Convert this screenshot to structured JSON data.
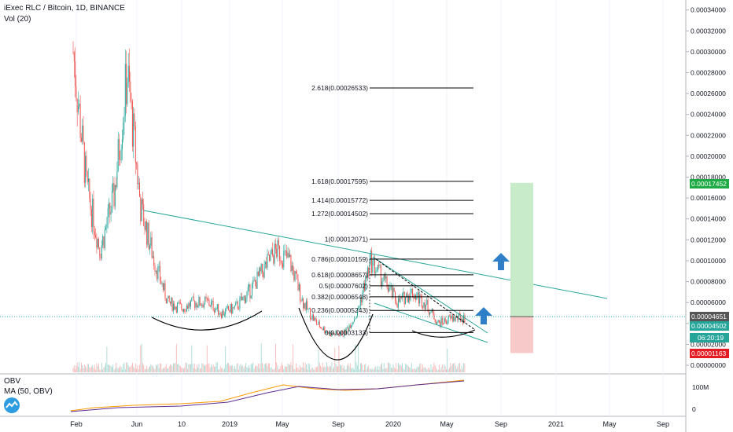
{
  "header": {
    "title": "iExec RLC / Bitcoin, 1D, BINANCE",
    "volume_label": "Vol (20)",
    "obv_label": "OBV",
    "ma_label": "MA (50, OBV)"
  },
  "colors": {
    "up": "#26a69a",
    "down": "#ef5350",
    "trendline": "#26a69a",
    "arc": "#000000",
    "fib": "#000000",
    "target_zone": "#c8ebc9",
    "stop_zone": "#f8c9c9",
    "arrow": "#2e7ec8",
    "obv_line": "#ff9800",
    "ma_line": "#5c2d91",
    "current_price_line": "#26a69a"
  },
  "price_axis": {
    "min": 0.0,
    "max": 0.000345,
    "ticks": [
      "0.00034000",
      "0.00032000",
      "0.00030000",
      "0.00028000",
      "0.00026000",
      "0.00024000",
      "0.00022000",
      "0.00020000",
      "0.00018000",
      "0.00016000",
      "0.00014000",
      "0.00012000",
      "0.00010000",
      "0.00008000",
      "0.00006000",
      "0.00004000",
      "0.00002000",
      "0.00000000"
    ]
  },
  "badges": {
    "target": "0.00017452",
    "last": "0.00004651",
    "current": "0.00004502",
    "countdown": "06:20:19",
    "stop": "0.00001163"
  },
  "obv_axis": {
    "ticks": [
      "100M",
      "0"
    ]
  },
  "time_axis": {
    "labels": [
      "Feb",
      "Jun",
      "10",
      "2019",
      "May",
      "Sep",
      "2020",
      "May",
      "Sep",
      "2021",
      "May",
      "Sep"
    ]
  },
  "fib_levels": [
    {
      "label": "2.618(0.00026533)",
      "price": 0.00026533
    },
    {
      "label": "1.618(0.00017595)",
      "price": 0.00017595
    },
    {
      "label": "1.414(0.00015772)",
      "price": 0.00015772
    },
    {
      "label": "1.272(0.00014502)",
      "price": 0.00014502
    },
    {
      "label": "1(0.00012071)",
      "price": 0.00012071
    },
    {
      "label": "0.786(0.00010159)",
      "price": 0.00010159
    },
    {
      "label": "0.618(0.00008657)",
      "price": 8.657e-05
    },
    {
      "label": "0.5(0.00007602)",
      "price": 7.602e-05
    },
    {
      "label": "0.382(0.00006548)",
      "price": 6.548e-05
    },
    {
      "label": "0.236(0.00005243)",
      "price": 5.243e-05
    },
    {
      "label": "0(0.00003133)",
      "price": 3.133e-05
    }
  ],
  "chart_data": {
    "type": "candlestick",
    "title": "iExec RLC / Bitcoin, 1D, BINANCE",
    "y_unit": "BTC",
    "ylim": [
      0.0,
      0.000345
    ],
    "approx_close_path": [
      {
        "date": "2018-01",
        "close": 0.0003
      },
      {
        "date": "2018-02",
        "close": 0.00017
      },
      {
        "date": "2018-03",
        "close": 0.00011
      },
      {
        "date": "2018-04",
        "close": 0.00016
      },
      {
        "date": "2018-05",
        "close": 0.00028
      },
      {
        "date": "2018-06",
        "close": 0.00015
      },
      {
        "date": "2018-07",
        "close": 0.0001
      },
      {
        "date": "2018-08",
        "close": 6e-05
      },
      {
        "date": "2018-09",
        "close": 5.5e-05
      },
      {
        "date": "2018-10",
        "close": 6e-05
      },
      {
        "date": "2018-11",
        "close": 6e-05
      },
      {
        "date": "2018-12",
        "close": 5e-05
      },
      {
        "date": "2019-01",
        "close": 5.5e-05
      },
      {
        "date": "2019-02",
        "close": 7e-05
      },
      {
        "date": "2019-03",
        "close": 9e-05
      },
      {
        "date": "2019-04",
        "close": 0.00011
      },
      {
        "date": "2019-05",
        "close": 0.0001
      },
      {
        "date": "2019-06",
        "close": 6e-05
      },
      {
        "date": "2019-07",
        "close": 4e-05
      },
      {
        "date": "2019-08",
        "close": 3e-05
      },
      {
        "date": "2019-09",
        "close": 3e-05
      },
      {
        "date": "2019-10",
        "close": 5e-05
      },
      {
        "date": "2019-11",
        "close": 0.0001
      },
      {
        "date": "2019-12",
        "close": 8e-05
      },
      {
        "date": "2020-01",
        "close": 6e-05
      },
      {
        "date": "2020-02",
        "close": 7e-05
      },
      {
        "date": "2020-03",
        "close": 6e-05
      },
      {
        "date": "2020-04",
        "close": 4e-05
      },
      {
        "date": "2020-05",
        "close": 4.5e-05
      },
      {
        "date": "2020-06",
        "close": 4.5e-05
      }
    ]
  }
}
